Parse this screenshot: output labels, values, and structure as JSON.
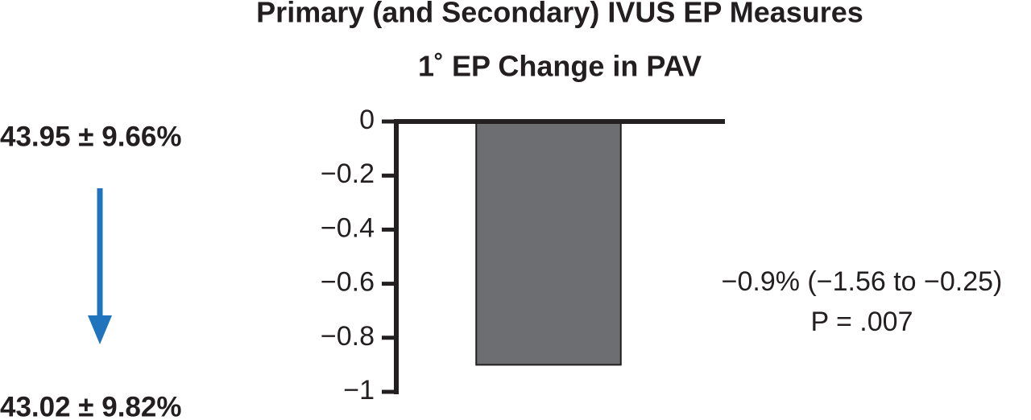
{
  "chart_data": {
    "type": "bar",
    "title": "Primary (and Secondary) IVUS EP Measures",
    "subtitle": "1˚ EP Change in PAV",
    "categories": [
      null
    ],
    "values": [
      -0.9
    ],
    "color": "#6d6e71",
    "ylim": [
      -1,
      0
    ],
    "yticks": [
      0,
      {
        "value": -0.2,
        "label": "−0.2"
      },
      {
        "value": -0.4,
        "label": "−0.4"
      },
      {
        "value": -0.6,
        "label": "−0.6"
      },
      {
        "value": -0.8,
        "label": "−0.8"
      },
      {
        "value": -1,
        "label": "−1"
      }
    ],
    "annotations": [
      "−0.9% (−1.56 to −0.25)",
      "P = .007"
    ],
    "baseline_text": "43.95 ± 9.66%",
    "followup_text": "43.02 ± 9.82%"
  }
}
